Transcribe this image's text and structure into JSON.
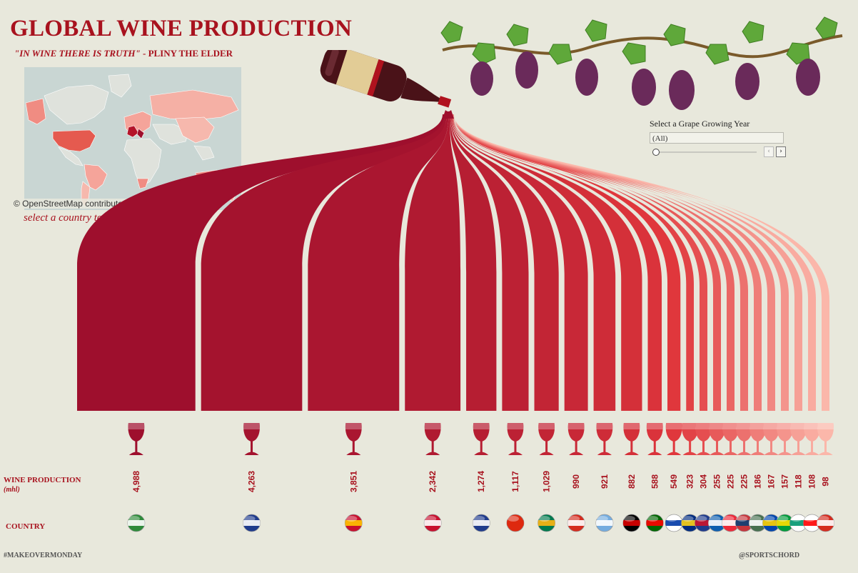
{
  "header": {
    "title": "GLOBAL WINE PRODUCTION",
    "quote": "\"IN WINE THERE IS TRUTH\"",
    "quote_author": " - PLINY THE ELDER"
  },
  "map": {
    "credit": "© OpenStreetMap contributors",
    "hint": "select a country to highlight a flow of wine"
  },
  "filter": {
    "label": "Select a Grape Growing Year",
    "selected": "(All)",
    "prev_icon": "chevron-left-icon",
    "next_icon": "chevron-right-icon"
  },
  "labels": {
    "production": "WINE PRODUCTION",
    "unit": "(mhl)",
    "country": "COUNTRY"
  },
  "footer": {
    "left": "#MAKEOVERMONDAY",
    "right": "@SPORTSCHORD"
  },
  "colors": {
    "dark": "#9e0f2d",
    "mid": "#e0373c",
    "light": "#fbb7aa",
    "background": "#e8e8dc",
    "title": "#a8121e"
  },
  "chart_data": {
    "type": "bar",
    "values": [
      4988,
      4263,
      3851,
      2342,
      1274,
      1117,
      1029,
      990,
      921,
      882,
      588,
      549,
      323,
      304,
      255,
      225,
      225,
      186,
      167,
      157,
      118,
      108,
      98
    ],
    "value_labels": [
      "4,988",
      "4,263",
      "3,851",
      "2,342",
      "1,274",
      "1,117",
      "1,029",
      "990",
      "921",
      "882",
      "588",
      "549",
      "323",
      "304",
      "255",
      "225",
      "225",
      "186",
      "167",
      "157",
      "118",
      "108",
      "98"
    ],
    "flags": [
      "flag-italy",
      "flag-france",
      "flag-spain",
      "flag-usa",
      "flag-australia",
      "flag-china",
      "flag-south-africa",
      "flag-chile",
      "flag-argentina",
      "flag-germany",
      "flag-portugal",
      "flag-russia",
      "flag-romania",
      "flag-new-zealand",
      "flag-greece",
      "flag-austria",
      "flag-serbia",
      "flag-hungary",
      "flag-moldova",
      "flag-brazil",
      "flag-bulgaria",
      "flag-georgia",
      "flag-switzerland"
    ]
  }
}
